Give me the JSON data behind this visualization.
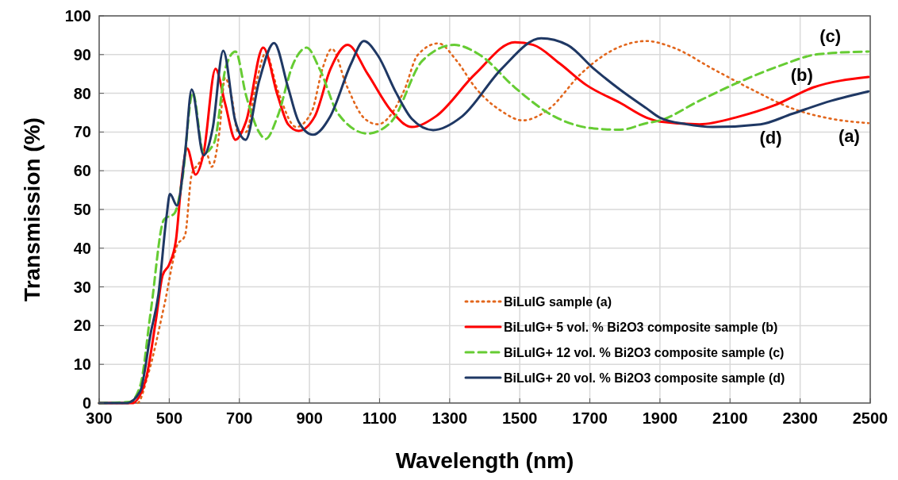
{
  "chart_data": {
    "type": "line",
    "xlabel": "Wavelength (nm)",
    "ylabel": "Transmission (%)",
    "xlim": [
      300,
      2500
    ],
    "ylim": [
      0,
      100
    ],
    "xticks": [
      300,
      500,
      700,
      900,
      1100,
      1300,
      1500,
      1700,
      1900,
      2100,
      2300,
      2500
    ],
    "yticks": [
      0,
      10,
      20,
      30,
      40,
      50,
      60,
      70,
      80,
      90,
      100
    ],
    "grid": true,
    "legend": "bottom right",
    "series": [
      {
        "name": "BiLuIG sample (a)",
        "color": "#e2661c",
        "line_style": "dotted",
        "x": [
          300,
          409,
          439,
          485,
          522,
          545,
          564,
          583,
          606,
          621,
          643,
          659,
          677,
          696,
          719,
          749,
          775,
          809,
          862,
          907,
          937,
          964,
          1005,
          1058,
          1095,
          1171,
          1208,
          1268,
          1320,
          1373,
          1448,
          1508,
          1584,
          1674,
          1764,
          1862,
          1938,
          2051,
          2164,
          2277,
          2390,
          2495
        ],
        "values": [
          0,
          0,
          7.2,
          24.9,
          40.6,
          43.3,
          59,
          61.7,
          64.5,
          61,
          70,
          84,
          79.5,
          70,
          70,
          83,
          90.4,
          80.9,
          71.3,
          75.4,
          86.3,
          91.5,
          82.2,
          73.4,
          72,
          80.9,
          89.8,
          92.9,
          88.4,
          81.5,
          75.4,
          73,
          76,
          85,
          91.1,
          93.5,
          91.8,
          86.3,
          80.9,
          76.1,
          73.4,
          72.3
        ]
      },
      {
        "name": "BiLuIG+ 5 vol. % Bi2O3 composite sample (b)",
        "color": "#ff0000",
        "line_style": "solid",
        "x": [
          300,
          394,
          432,
          462,
          481,
          500,
          519,
          537,
          551,
          575,
          598,
          632,
          659,
          689,
          719,
          768,
          809,
          839,
          869,
          915,
          960,
          1009,
          1066,
          1134,
          1192,
          1260,
          1373,
          1486,
          1539,
          1614,
          1689,
          1787,
          1862,
          1900,
          2013,
          2126,
          2224,
          2337,
          2495
        ],
        "values": [
          0,
          0,
          5.7,
          21.5,
          33,
          35.8,
          42,
          59,
          65.8,
          59,
          64.5,
          86.3,
          77.5,
          68,
          72.7,
          91.8,
          79.5,
          72,
          70.3,
          74,
          86.3,
          92.5,
          85,
          75.4,
          71.3,
          74,
          85,
          93.2,
          92.5,
          87.7,
          82.2,
          77.5,
          73.7,
          72.7,
          72,
          74,
          76.8,
          81.5,
          84.2
        ]
      },
      {
        "name": "BiLuIG+ 12 vol. % Bi2O3 composite sample (c)",
        "color": "#66cc33",
        "line_style": "dashed",
        "x": [
          300,
          387,
          417,
          447,
          485,
          515,
          537,
          567,
          598,
          628,
          662,
          689,
          719,
          756,
          775,
          809,
          854,
          892,
          929,
          982,
          1066,
          1134,
          1222,
          1313,
          1388,
          1486,
          1599,
          1712,
          1787,
          1862,
          1900,
          2013,
          2126,
          2239,
          2352,
          2495
        ],
        "values": [
          0,
          0.3,
          4.4,
          23.5,
          47.4,
          49,
          57.6,
          80.2,
          64.5,
          67.2,
          87,
          90.8,
          79.5,
          70,
          68.2,
          74,
          87.7,
          91.8,
          86.3,
          74.7,
          69.6,
          72.7,
          88.4,
          92.5,
          89.8,
          81.5,
          74,
          70.9,
          70.6,
          72.3,
          73,
          78.1,
          82.9,
          87,
          90.1,
          90.8
        ]
      },
      {
        "name": "BiLuIG+ 20 vol. % Bi2O3 composite sample (d)",
        "color": "#1f3864",
        "line_style": "solid",
        "x": [
          300,
          379,
          417,
          447,
          469,
          492,
          502,
          522,
          545,
          564,
          598,
          624,
          654,
          688,
          718,
          756,
          799,
          839,
          869,
          910,
          959,
          1019,
          1055,
          1095,
          1147,
          1192,
          1253,
          1335,
          1448,
          1561,
          1636,
          1712,
          1787,
          1862,
          1900,
          1976,
          2051,
          2187,
          2277,
          2390,
          2495
        ],
        "values": [
          0,
          0,
          3,
          18,
          28,
          48,
          54,
          51,
          64.5,
          81,
          64,
          71,
          91,
          73,
          68,
          83,
          93,
          81.5,
          72.7,
          69.3,
          74,
          87.7,
          93.5,
          89.8,
          80.2,
          73.4,
          70.5,
          74,
          86.3,
          94.2,
          92.5,
          86.3,
          80.9,
          76.1,
          73.7,
          72,
          71.3,
          72,
          74.7,
          78.1,
          80.5
        ]
      }
    ],
    "annotations": [
      {
        "text": "(c)",
        "x": 2386,
        "y": 90.4
      },
      {
        "text": "(b)",
        "x": 2305,
        "y": 80.3
      },
      {
        "text": "(d)",
        "x": 2216,
        "y": 72.4
      },
      {
        "text": "(a)",
        "x": 2440,
        "y": 72.8
      }
    ]
  }
}
